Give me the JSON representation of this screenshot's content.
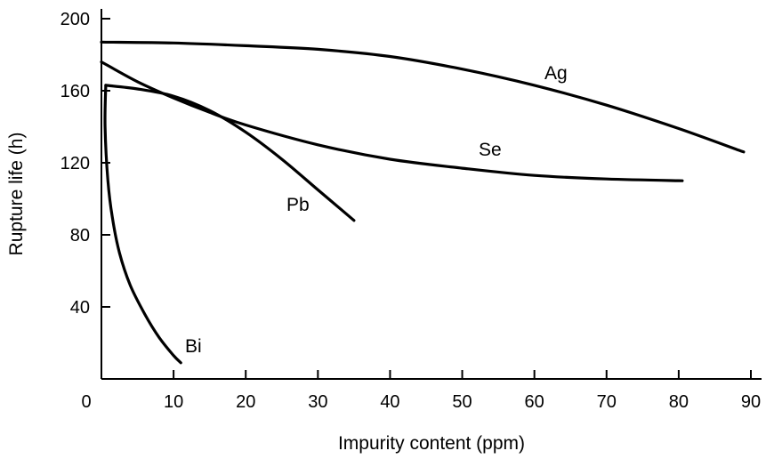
{
  "chart_data": {
    "type": "line",
    "title": "",
    "xlabel": "Impurity content (ppm)",
    "ylabel": "Rupture life (h)",
    "xlim": [
      0,
      90
    ],
    "ylim": [
      0,
      200
    ],
    "xticks": [
      0,
      10,
      20,
      30,
      40,
      50,
      60,
      70,
      80,
      90
    ],
    "yticks": [
      40,
      80,
      120,
      160,
      200
    ],
    "grid": false,
    "legend": "none",
    "series": [
      {
        "name": "Ag",
        "x": [
          0,
          10,
          20,
          30,
          40,
          50,
          60,
          70,
          80,
          89
        ],
        "y": [
          187,
          186.5,
          185,
          183,
          179,
          172,
          163,
          152,
          139,
          126
        ]
      },
      {
        "name": "Se",
        "x": [
          0,
          5,
          10,
          15,
          20,
          30,
          40,
          50,
          60,
          70,
          80.5
        ],
        "y": [
          176,
          165,
          156,
          148,
          141,
          130,
          122,
          117,
          113,
          111,
          110
        ]
      },
      {
        "name": "Pb",
        "x": [
          0.6,
          5,
          10,
          15,
          20,
          25,
          30,
          35
        ],
        "y": [
          163,
          161,
          157,
          149,
          137,
          122,
          105,
          88
        ]
      },
      {
        "name": "Bi",
        "x": [
          0.6,
          0.5,
          0.9,
          1.5,
          2.5,
          4,
          6,
          8,
          10,
          11
        ],
        "y": [
          163,
          140,
          110,
          90,
          70,
          52,
          36,
          23,
          13,
          9
        ]
      }
    ]
  }
}
